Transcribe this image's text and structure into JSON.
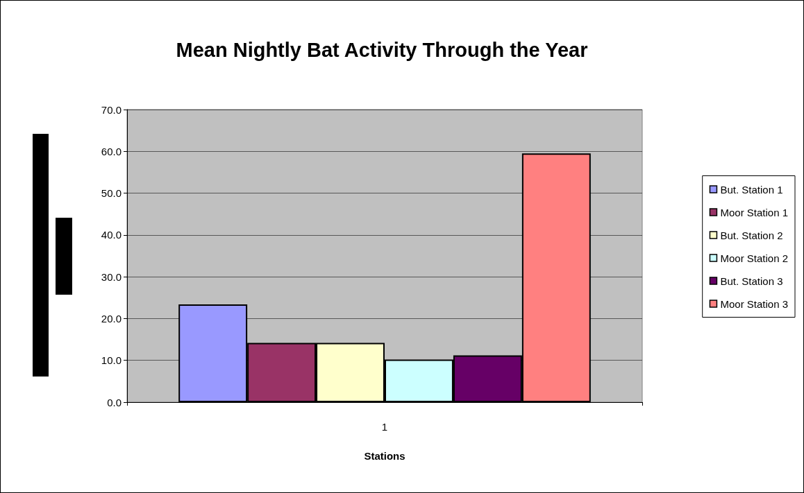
{
  "chart_data": {
    "type": "bar",
    "title": "Mean Nightly Bat Activity Through the Year",
    "xlabel": "Stations",
    "categories": [
      "1"
    ],
    "series": [
      {
        "name": "But. Station 1",
        "color": "#9999ff",
        "values": [
          23.4
        ]
      },
      {
        "name": "Moor Station 1",
        "color": "#993366",
        "values": [
          14.2
        ]
      },
      {
        "name": "But. Station 2",
        "color": "#ffffcc",
        "values": [
          14.2
        ]
      },
      {
        "name": "Moor Station 2",
        "color": "#ccffff",
        "values": [
          10.2
        ]
      },
      {
        "name": "But. Station 3",
        "color": "#660066",
        "values": [
          11.2
        ]
      },
      {
        "name": "Moor Station 3",
        "color": "#ff8080",
        "values": [
          59.5
        ]
      }
    ],
    "ylim": [
      0,
      70
    ],
    "yticks": [
      {
        "value": 0,
        "label": "0.0"
      },
      {
        "value": 10,
        "label": "10.0"
      },
      {
        "value": 20,
        "label": "20.0"
      },
      {
        "value": 30,
        "label": "30.0"
      },
      {
        "value": 40,
        "label": "40.0"
      },
      {
        "value": 50,
        "label": "50.0"
      },
      {
        "value": 60,
        "label": "60.0"
      },
      {
        "value": 70,
        "label": "70.0"
      }
    ],
    "grid": "y",
    "legend": "right"
  }
}
